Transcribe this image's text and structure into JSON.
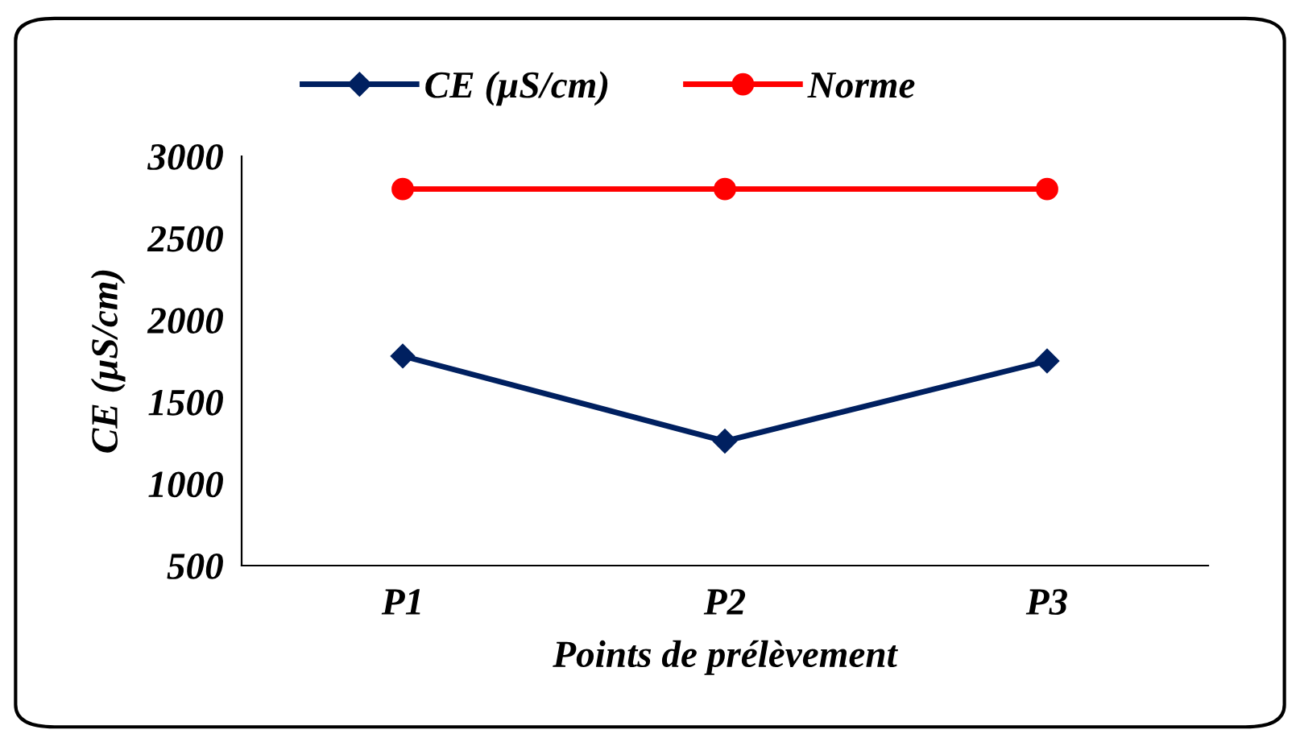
{
  "chart_data": {
    "type": "line",
    "ylabel": "CE (µS/cm)",
    "xlabel": "Points de prélèvement",
    "categories": [
      "P1",
      "P2",
      "P3"
    ],
    "series": [
      {
        "name": "CE (µS/cm)",
        "color": "#002060",
        "marker": "diamond",
        "values": [
          1780,
          1260,
          1750
        ]
      },
      {
        "name": "Norme",
        "color": "#ff0000",
        "marker": "circle",
        "values": [
          2800,
          2800,
          2800
        ]
      }
    ],
    "ylim": [
      500,
      3000
    ],
    "yticks": [
      500,
      1000,
      1500,
      2000,
      2500,
      3000
    ],
    "grid": false,
    "legend": "top",
    "line_style": "solid"
  }
}
